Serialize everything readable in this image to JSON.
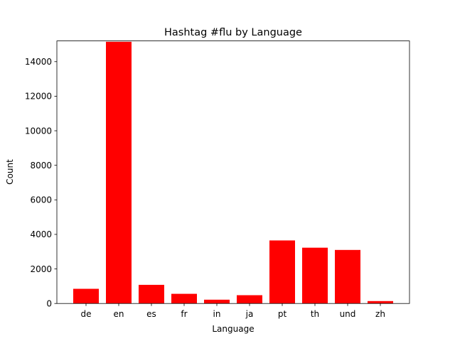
{
  "chart_data": {
    "type": "bar",
    "title": "Hashtag #flu by Language",
    "xlabel": "Language",
    "ylabel": "Count",
    "categories": [
      "de",
      "en",
      "es",
      "fr",
      "in",
      "ja",
      "pt",
      "th",
      "und",
      "zh"
    ],
    "values": [
      850,
      15150,
      1080,
      560,
      220,
      480,
      3650,
      3230,
      3100,
      140
    ],
    "ylim": [
      0,
      15200
    ],
    "yticks": [
      0,
      2000,
      4000,
      6000,
      8000,
      10000,
      12000,
      14000
    ],
    "bar_color": "#ff0000",
    "grid": false
  }
}
